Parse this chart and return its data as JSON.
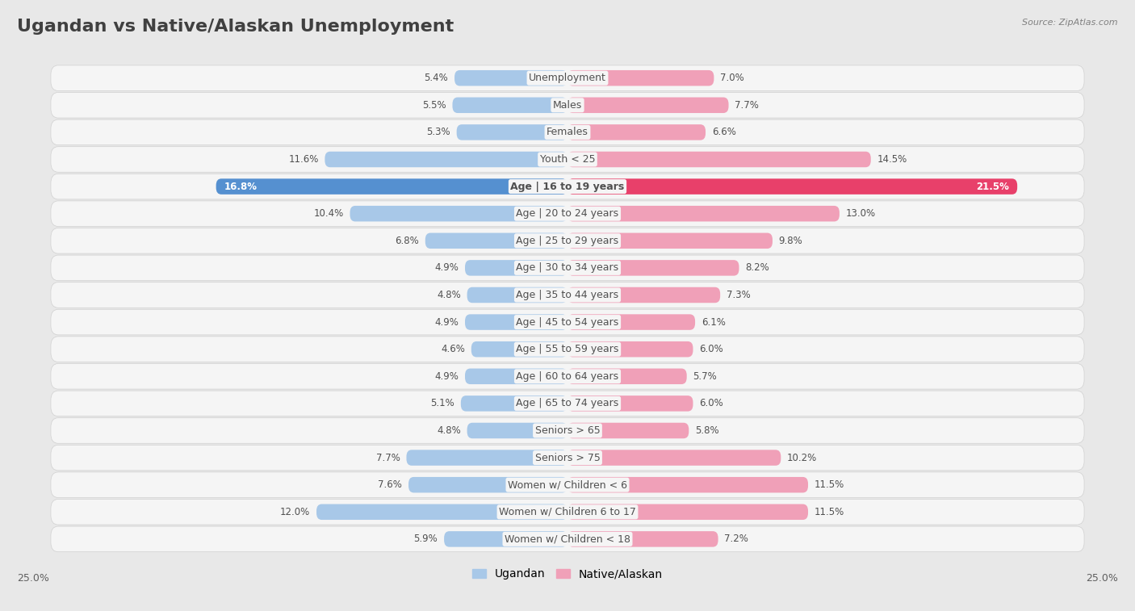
{
  "title": "Ugandan vs Native/Alaskan Unemployment",
  "source": "Source: ZipAtlas.com",
  "categories": [
    "Unemployment",
    "Males",
    "Females",
    "Youth < 25",
    "Age | 16 to 19 years",
    "Age | 20 to 24 years",
    "Age | 25 to 29 years",
    "Age | 30 to 34 years",
    "Age | 35 to 44 years",
    "Age | 45 to 54 years",
    "Age | 55 to 59 years",
    "Age | 60 to 64 years",
    "Age | 65 to 74 years",
    "Seniors > 65",
    "Seniors > 75",
    "Women w/ Children < 6",
    "Women w/ Children 6 to 17",
    "Women w/ Children < 18"
  ],
  "ugandan": [
    5.4,
    5.5,
    5.3,
    11.6,
    16.8,
    10.4,
    6.8,
    4.9,
    4.8,
    4.9,
    4.6,
    4.9,
    5.1,
    4.8,
    7.7,
    7.6,
    12.0,
    5.9
  ],
  "native_alaskan": [
    7.0,
    7.7,
    6.6,
    14.5,
    21.5,
    13.0,
    9.8,
    8.2,
    7.3,
    6.1,
    6.0,
    5.7,
    6.0,
    5.8,
    10.2,
    11.5,
    11.5,
    7.2
  ],
  "ugandan_color": "#a8c8e8",
  "native_alaskan_color": "#f0a0b8",
  "ugandan_highlight_color": "#5590d0",
  "native_alaskan_highlight_color": "#e8406a",
  "highlight_row": 4,
  "axis_max": 25.0,
  "background_color": "#e8e8e8",
  "row_bg_color": "#f5f5f5",
  "row_border_color": "#d0d0d0",
  "title_fontsize": 16,
  "label_fontsize": 9,
  "value_fontsize": 8.5,
  "legend_fontsize": 10,
  "title_color": "#404040",
  "source_color": "#808080",
  "value_color": "#505050",
  "label_color": "#505050"
}
